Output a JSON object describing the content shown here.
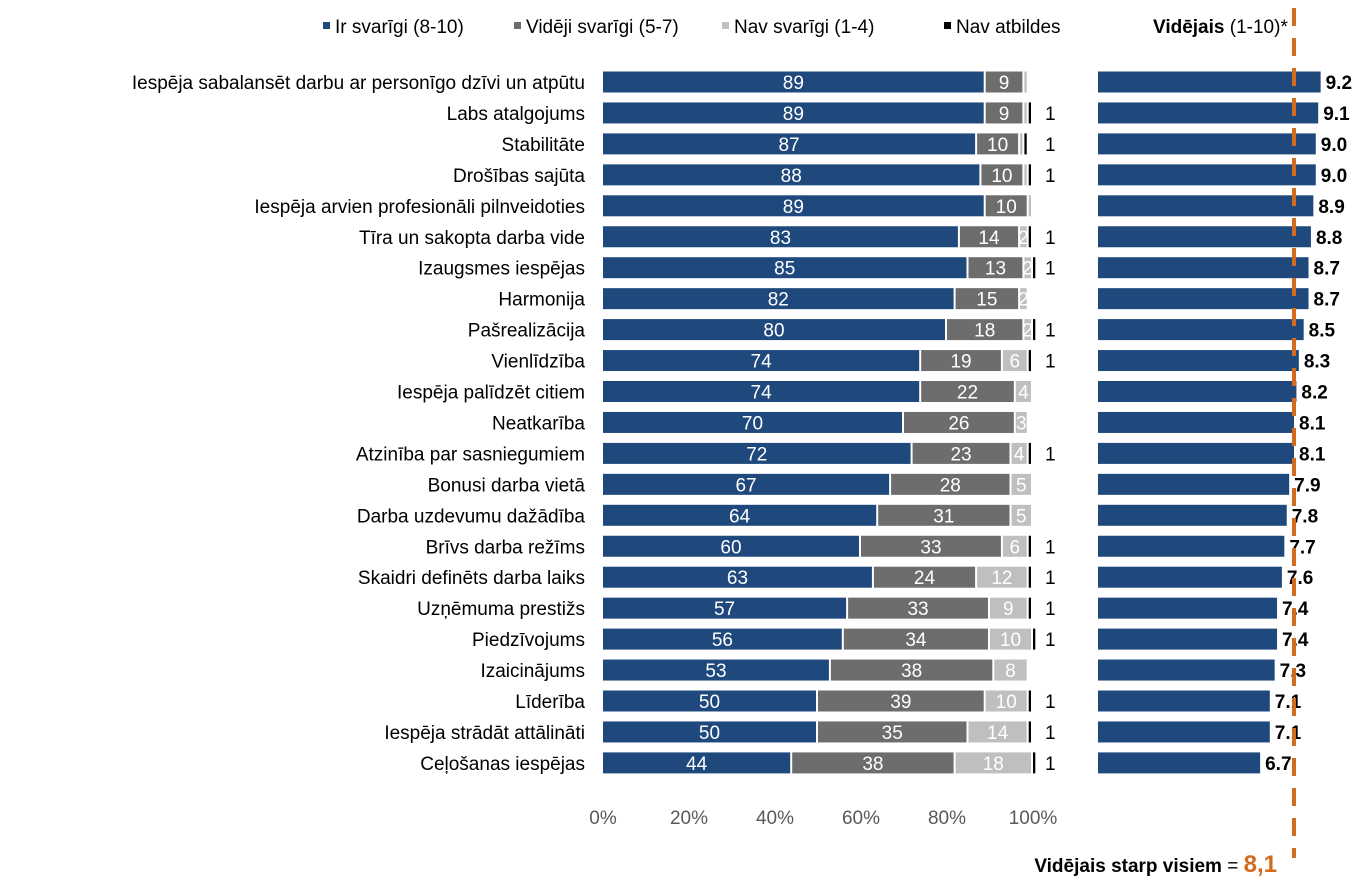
{
  "colors": {
    "important": "#1f497d",
    "medium": "#6d6d6d",
    "not_important": "#bfbfbf",
    "no_answer": "#000000",
    "mean_bar": "#1f497d",
    "overall_line": "#d36b1e"
  },
  "legend": {
    "items": [
      {
        "label": "Ir svarīgi (8-10)",
        "color": "#1f497d"
      },
      {
        "label": "Vidēji svarīgi (5-7)",
        "color": "#6d6d6d"
      },
      {
        "label": "Nav svarīgi (1-4)",
        "color": "#bfbfbf"
      },
      {
        "label": "Nav atbildes",
        "color": "#000000"
      }
    ]
  },
  "avg_header": {
    "bold": "Vidējais",
    "rest": " (1-10)*"
  },
  "overall": {
    "bold": "Vidējais starp visiem",
    "eq": " = ",
    "value_text": "8,1"
  },
  "chart_data": [
    {
      "type": "bar",
      "orientation": "horizontal",
      "stacked": true,
      "xlim": [
        0,
        100
      ],
      "x_ticks": [
        "0%",
        "20%",
        "40%",
        "60%",
        "80%",
        "100%"
      ],
      "categories": [
        "Iespēja sabalansēt darbu ar personīgo dzīvi un atpūtu",
        "Labs atalgojums",
        "Stabilitāte",
        "Drošības sajūta",
        "Iespēja arvien profesionāli pilnveidoties",
        "Tīra un sakopta darba vide",
        "Izaugsmes iespējas",
        "Harmonija",
        "Pašrealizācija",
        "Vienlīdzība",
        "Iespēja palīdzēt citiem",
        "Neatkarība",
        "Atzinība par sasniegumiem",
        "Bonusi darba vietā",
        "Darba uzdevumu dažādība",
        "Brīvs darba režīms",
        "Skaidri definēts darba laiks",
        "Uzņēmuma prestižs",
        "Piedzīvojums",
        "Izaicinājums",
        "Līderība",
        "Iespēja strādāt attālināti",
        "Ceļošanas iespējas"
      ],
      "series": [
        {
          "name": "Ir svarīgi (8-10)",
          "values": [
            89,
            89,
            87,
            88,
            89,
            83,
            85,
            82,
            80,
            74,
            74,
            70,
            72,
            67,
            64,
            60,
            63,
            57,
            56,
            53,
            50,
            50,
            44
          ]
        },
        {
          "name": "Vidēji svarīgi (5-7)",
          "values": [
            9,
            9,
            10,
            10,
            10,
            14,
            13,
            15,
            18,
            19,
            22,
            26,
            23,
            28,
            31,
            33,
            24,
            33,
            34,
            38,
            39,
            35,
            38
          ]
        },
        {
          "name": "Nav svarīgi (1-4)",
          "values": [
            1,
            1,
            1,
            1,
            1,
            2,
            2,
            2,
            2,
            6,
            4,
            3,
            4,
            5,
            5,
            6,
            12,
            9,
            10,
            8,
            10,
            14,
            18
          ]
        },
        {
          "name": "Nav atbildes",
          "values": [
            0,
            1,
            1,
            1,
            0,
            1,
            1,
            0,
            1,
            1,
            0,
            0,
            1,
            0,
            0,
            1,
            1,
            1,
            1,
            0,
            1,
            1,
            1
          ]
        }
      ],
      "segment_labels": [
        [
          "89",
          "9",
          "",
          ""
        ],
        [
          "89",
          "9",
          "",
          ""
        ],
        [
          "87",
          "10",
          "",
          ""
        ],
        [
          "88",
          "10",
          "",
          ""
        ],
        [
          "89",
          "10",
          "",
          ""
        ],
        [
          "83",
          "14",
          "2",
          ""
        ],
        [
          "85",
          "13",
          "2",
          ""
        ],
        [
          "82",
          "15",
          "2",
          ""
        ],
        [
          "80",
          "18",
          "2",
          ""
        ],
        [
          "74",
          "19",
          "6",
          ""
        ],
        [
          "74",
          "22",
          "4",
          ""
        ],
        [
          "70",
          "26",
          "3",
          ""
        ],
        [
          "72",
          "23",
          "4",
          ""
        ],
        [
          "67",
          "28",
          "5",
          ""
        ],
        [
          "64",
          "31",
          "5",
          ""
        ],
        [
          "60",
          "33",
          "6",
          ""
        ],
        [
          "63",
          "24",
          "12",
          ""
        ],
        [
          "57",
          "33",
          "9",
          ""
        ],
        [
          "56",
          "34",
          "10",
          ""
        ],
        [
          "53",
          "38",
          "8",
          ""
        ],
        [
          "50",
          "39",
          "10",
          ""
        ],
        [
          "50",
          "35",
          "14",
          ""
        ],
        [
          "44",
          "38",
          "18",
          ""
        ]
      ],
      "outside_labels": [
        "",
        "1",
        "1",
        "1",
        "",
        "1",
        "1",
        "",
        "1",
        "1",
        "",
        "",
        "1",
        "",
        "",
        "1",
        "1",
        "1",
        "1",
        "",
        "1",
        "1",
        "1"
      ]
    },
    {
      "type": "bar",
      "orientation": "horizontal",
      "title": "Vidējais (1-10)*",
      "reference_line": {
        "value": 8.1,
        "label": "Vidējais starp visiem = 8,1"
      },
      "categories_ref": "same as stacked chart",
      "values": [
        9.2,
        9.1,
        9.0,
        9.0,
        8.9,
        8.8,
        8.7,
        8.7,
        8.5,
        8.3,
        8.2,
        8.1,
        8.1,
        7.9,
        7.8,
        7.7,
        7.6,
        7.4,
        7.4,
        7.3,
        7.1,
        7.1,
        6.7
      ],
      "value_labels": [
        "9.2",
        "9.1",
        "9.0",
        "9.0",
        "8.9",
        "8.8",
        "8.7",
        "8.7",
        "8.5",
        "8.3",
        "8.2",
        "8.1",
        "8.1",
        "7.9",
        "7.8",
        "7.7",
        "7.6",
        "7.4",
        "7.4",
        "7.3",
        "7.1",
        "7.1",
        "6.7"
      ]
    }
  ]
}
